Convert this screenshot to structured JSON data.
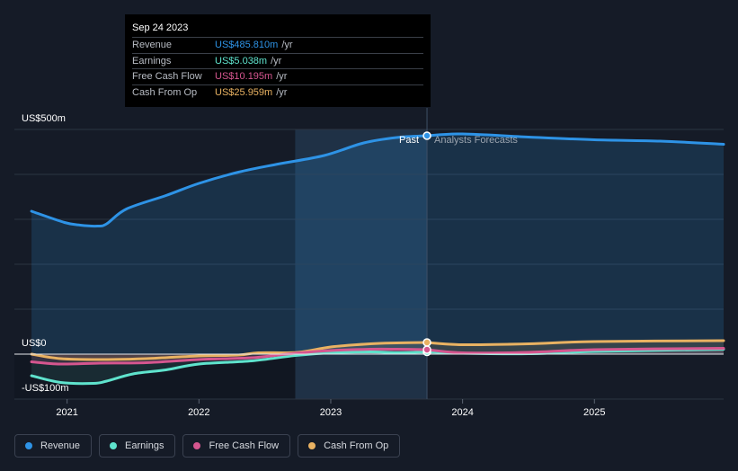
{
  "tooltip": {
    "date": "Sep 24 2023",
    "rows": [
      {
        "label": "Revenue",
        "value": "US$485.810m",
        "unit": "/yr",
        "color": "#2e93e6"
      },
      {
        "label": "Earnings",
        "value": "US$5.038m",
        "unit": "/yr",
        "color": "#5fe3cd"
      },
      {
        "label": "Free Cash Flow",
        "value": "US$10.195m",
        "unit": "/yr",
        "color": "#d5568f"
      },
      {
        "label": "Cash From Op",
        "value": "US$25.959m",
        "unit": "/yr",
        "color": "#e9b262"
      }
    ]
  },
  "legend": [
    {
      "label": "Revenue",
      "color": "#2e93e6"
    },
    {
      "label": "Earnings",
      "color": "#5fe3cd"
    },
    {
      "label": "Free Cash Flow",
      "color": "#d5568f"
    },
    {
      "label": "Cash From Op",
      "color": "#e9b262"
    }
  ],
  "chart_data": {
    "type": "line",
    "title": "",
    "xlabel": "",
    "ylabel": "",
    "ylim": [
      -100,
      500
    ],
    "xlim": [
      2020.6,
      2025.98
    ],
    "y_tick_labels": [
      {
        "value": 500,
        "label": "US$500m"
      },
      {
        "value": 0,
        "label": "US$0"
      },
      {
        "value": -100,
        "label": "-US$100m"
      }
    ],
    "gridlines": [
      500,
      400,
      300,
      200,
      100,
      0,
      -100
    ],
    "x_ticks": [
      {
        "value": 2021,
        "label": "2021"
      },
      {
        "value": 2022,
        "label": "2022"
      },
      {
        "value": 2023,
        "label": "2023"
      },
      {
        "value": 2024,
        "label": "2024"
      },
      {
        "value": 2025,
        "label": "2025"
      }
    ],
    "past_label": "Past",
    "forecast_label": "Analysts Forecasts",
    "divider_x": 2023.73,
    "highlight_start_x": 2022.73,
    "series": [
      {
        "name": "Revenue",
        "color": "#2e93e6",
        "x": [
          2020.73,
          2020.98,
          2021.1,
          2021.23,
          2021.3,
          2021.45,
          2021.75,
          2022.0,
          2022.3,
          2022.6,
          2022.95,
          2023.25,
          2023.5,
          2023.73
        ],
        "y": [
          318,
          293,
          287,
          285,
          290,
          323,
          353,
          380,
          405,
          423,
          442,
          470,
          482,
          486
        ],
        "forecast_x": [
          2023.73,
          2024.0,
          2024.5,
          2025.0,
          2025.5,
          2025.98
        ],
        "forecast_y": [
          486,
          490,
          483,
          477,
          474,
          467
        ]
      },
      {
        "name": "Earnings",
        "color": "#5fe3cd",
        "x": [
          2020.73,
          2020.95,
          2021.2,
          2021.3,
          2021.5,
          2021.75,
          2022.0,
          2022.4,
          2022.73,
          2023.0,
          2023.3,
          2023.5,
          2023.73
        ],
        "y": [
          -48,
          -63,
          -65,
          -60,
          -44,
          -35,
          -22,
          -15,
          -3,
          3,
          5,
          3,
          5
        ],
        "forecast_x": [
          2023.73,
          2024.0,
          2024.5,
          2025.0,
          2025.98
        ],
        "forecast_y": [
          5,
          2,
          1,
          6,
          11
        ]
      },
      {
        "name": "Free Cash Flow",
        "color": "#d5568f",
        "x": [
          2020.73,
          2020.95,
          2021.25,
          2021.6,
          2022.0,
          2022.4,
          2022.73,
          2023.0,
          2023.3,
          2023.5,
          2023.73
        ],
        "y": [
          -17,
          -22,
          -20,
          -19,
          -12,
          -8,
          2,
          8,
          11,
          11,
          10
        ],
        "forecast_x": [
          2023.73,
          2024.0,
          2024.5,
          2025.0,
          2025.98
        ],
        "forecast_y": [
          10,
          3,
          4,
          10,
          13
        ]
      },
      {
        "name": "Cash From Op",
        "color": "#e9b262",
        "x": [
          2020.73,
          2020.95,
          2021.25,
          2021.6,
          2022.0,
          2022.3,
          2022.45,
          2022.75,
          2023.0,
          2023.3,
          2023.5,
          2023.73
        ],
        "y": [
          0,
          -10,
          -12,
          -10,
          -4,
          -2,
          3,
          4,
          16,
          23,
          25,
          26
        ],
        "forecast_x": [
          2023.73,
          2024.0,
          2024.5,
          2025.0,
          2025.98
        ],
        "forecast_y": [
          26,
          21,
          23,
          28,
          30
        ]
      }
    ]
  }
}
